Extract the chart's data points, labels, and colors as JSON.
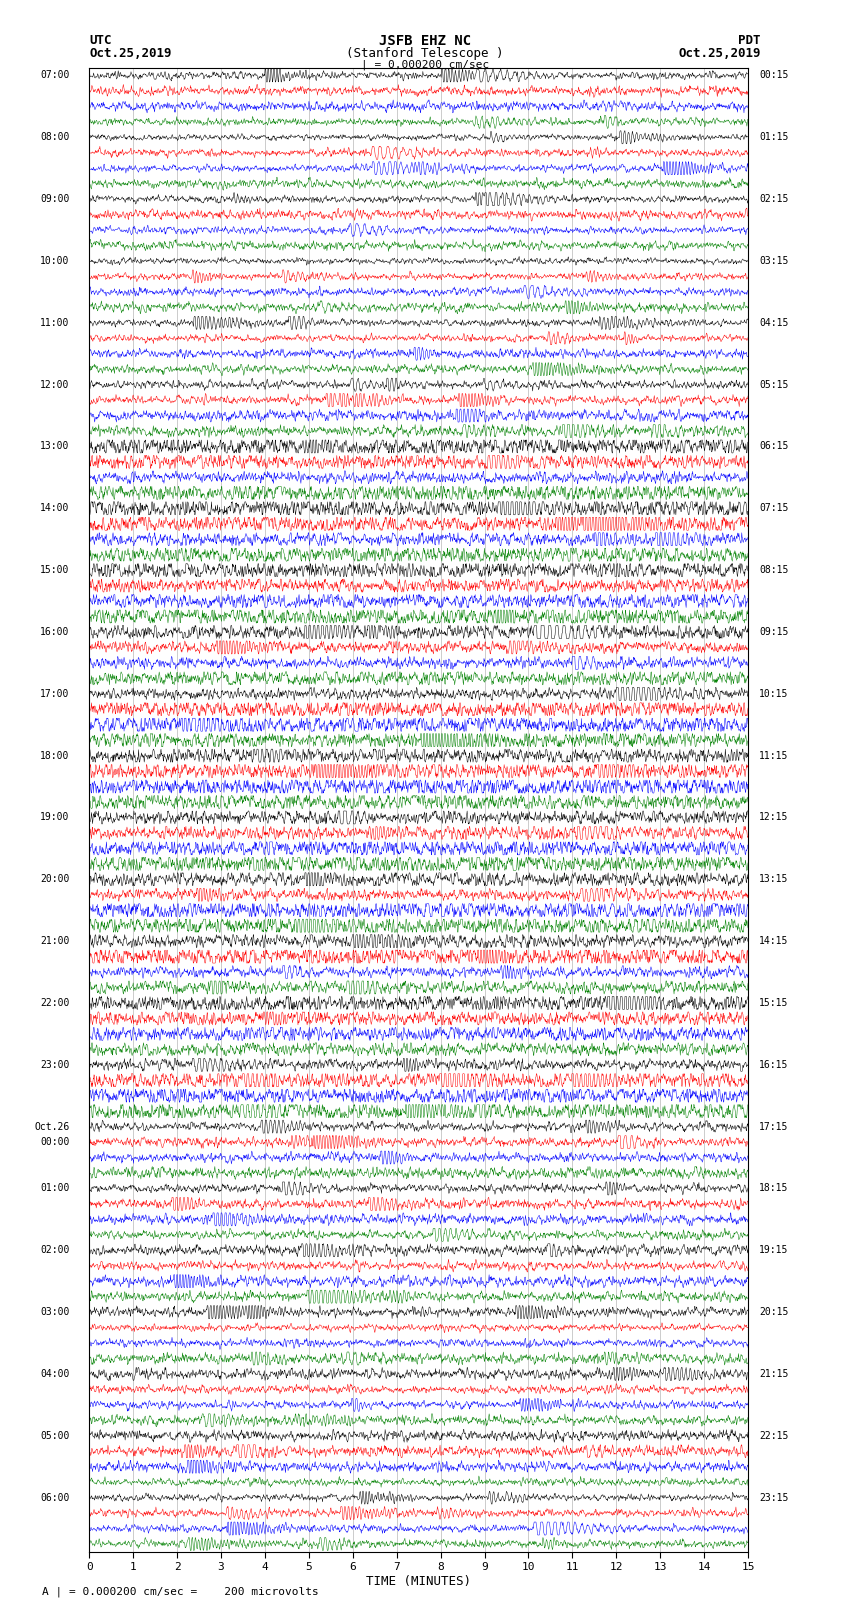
{
  "title_line1": "JSFB EHZ NC",
  "title_line2": "(Stanford Telescope )",
  "title_line3": "| = 0.000200 cm/sec",
  "label_utc": "UTC",
  "label_date_left": "Oct.25,2019",
  "label_pdt": "PDT",
  "label_date_right": "Oct.25,2019",
  "xlabel": "TIME (MINUTES)",
  "footer": "A | = 0.000200 cm/sec =    200 microvolts",
  "colors": [
    "black",
    "red",
    "blue",
    "green"
  ],
  "utc_labels": [
    "07:00",
    "",
    "",
    "",
    "08:00",
    "",
    "",
    "",
    "09:00",
    "",
    "",
    "",
    "10:00",
    "",
    "",
    "",
    "11:00",
    "",
    "",
    "",
    "12:00",
    "",
    "",
    "",
    "13:00",
    "",
    "",
    "",
    "14:00",
    "",
    "",
    "",
    "15:00",
    "",
    "",
    "",
    "16:00",
    "",
    "",
    "",
    "17:00",
    "",
    "",
    "",
    "18:00",
    "",
    "",
    "",
    "19:00",
    "",
    "",
    "",
    "20:00",
    "",
    "",
    "",
    "21:00",
    "",
    "",
    "",
    "22:00",
    "",
    "",
    "",
    "23:00",
    "",
    "",
    "",
    "Oct.26",
    "00:00",
    "",
    "",
    "01:00",
    "",
    "",
    "",
    "02:00",
    "",
    "",
    "",
    "03:00",
    "",
    "",
    "",
    "04:00",
    "",
    "",
    "",
    "05:00",
    "",
    "",
    "",
    "06:00",
    "",
    "",
    ""
  ],
  "pdt_labels": [
    "00:15",
    "",
    "",
    "",
    "01:15",
    "",
    "",
    "",
    "02:15",
    "",
    "",
    "",
    "03:15",
    "",
    "",
    "",
    "04:15",
    "",
    "",
    "",
    "05:15",
    "",
    "",
    "",
    "06:15",
    "",
    "",
    "",
    "07:15",
    "",
    "",
    "",
    "08:15",
    "",
    "",
    "",
    "09:15",
    "",
    "",
    "",
    "10:15",
    "",
    "",
    "",
    "11:15",
    "",
    "",
    "",
    "12:15",
    "",
    "",
    "",
    "13:15",
    "",
    "",
    "",
    "14:15",
    "",
    "",
    "",
    "15:15",
    "",
    "",
    "",
    "16:15",
    "",
    "",
    "",
    "17:15",
    "",
    "",
    "",
    "18:15",
    "",
    "",
    "",
    "19:15",
    "",
    "",
    "",
    "20:15",
    "",
    "",
    "",
    "21:15",
    "",
    "",
    "",
    "22:15",
    "",
    "",
    "",
    "23:15",
    "",
    "",
    ""
  ],
  "n_rows": 96,
  "minutes": 15,
  "background_color": "white",
  "line_color_cycle": [
    "black",
    "red",
    "blue",
    "green"
  ],
  "vline_color": "#888888",
  "vline_positions": [
    1,
    2,
    3,
    4,
    5,
    6,
    7,
    8,
    9,
    10,
    11,
    12,
    13,
    14
  ]
}
